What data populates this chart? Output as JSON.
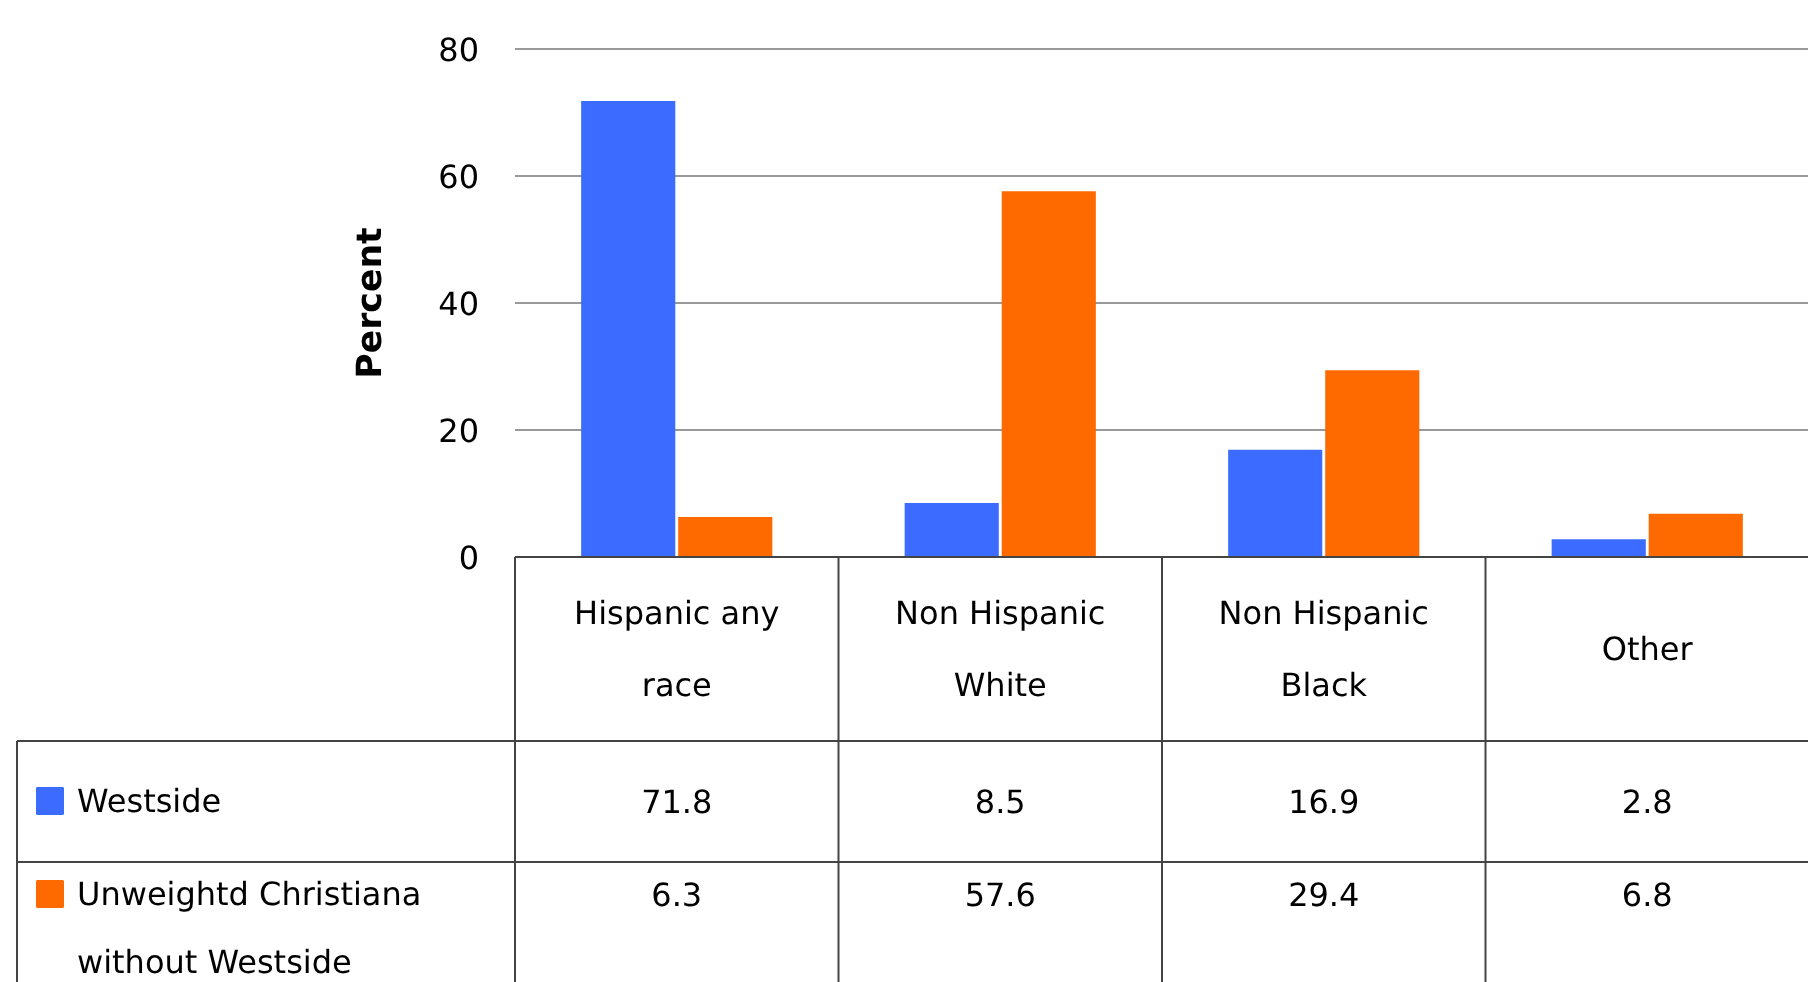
{
  "chart_data": {
    "type": "bar",
    "ylabel": "Percent",
    "categories": [
      "Hispanic any race",
      "Non Hispanic White",
      "Non Hispanic Black",
      "Other"
    ],
    "series": [
      {
        "name": "Westside",
        "color": "#3c6cff",
        "values": [
          71.8,
          8.5,
          16.9,
          2.8
        ]
      },
      {
        "name": "Unweightd Christiana without Westside",
        "color": "#ff6a00",
        "values": [
          6.3,
          57.6,
          29.4,
          6.8
        ]
      }
    ],
    "ylim": [
      0,
      80
    ],
    "yticks": [
      0,
      20,
      40,
      60,
      80
    ],
    "grid": "y",
    "data_labels": true,
    "legend": "bottom left"
  }
}
